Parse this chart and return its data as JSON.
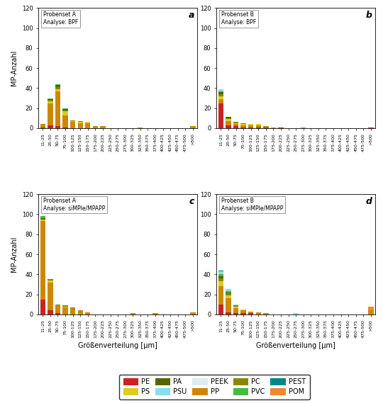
{
  "categories": [
    "11-25",
    "25-50",
    "50-75",
    "75-100",
    "100-125",
    "125-150",
    "150-175",
    "175-200",
    "200-225",
    "225-250",
    "250-275",
    "275-300",
    "300-325",
    "325-350",
    "350-375",
    "375-400",
    "400-425",
    "425-450",
    "450-475",
    "475-500",
    ">500"
  ],
  "colors": {
    "PE": "#cc2222",
    "PP": "#cc8800",
    "PS": "#ddcc22",
    "PC": "#888800",
    "PA": "#556600",
    "PVC": "#44bb44",
    "PSU": "#88ddee",
    "PEST": "#008888",
    "PEEK": "#ddeeee",
    "POM": "#ee8833"
  },
  "panel_a": {
    "title": "Probenset A",
    "subtitle": "Analyse: BPF",
    "label": "a",
    "data": {
      "PE": [
        1,
        3,
        2,
        1,
        0,
        0,
        0,
        0,
        0,
        0,
        0,
        0,
        0,
        0,
        0,
        0,
        0,
        0,
        0,
        0,
        0
      ],
      "PP": [
        3,
        22,
        35,
        12,
        6,
        5,
        5,
        2,
        2,
        0,
        0,
        0,
        0,
        1,
        0,
        0,
        0,
        0,
        0,
        0,
        2
      ],
      "PS": [
        0,
        2,
        2,
        4,
        1,
        1,
        1,
        0,
        0,
        0,
        0,
        0,
        0,
        0,
        0,
        0,
        0,
        0,
        0,
        0,
        0
      ],
      "PC": [
        0,
        1,
        2,
        1,
        1,
        1,
        0,
        0,
        0,
        0,
        0,
        0,
        0,
        0,
        0,
        0,
        0,
        0,
        0,
        0,
        0
      ],
      "PA": [
        0,
        1,
        2,
        1,
        0,
        0,
        0,
        0,
        0,
        0,
        0,
        0,
        0,
        0,
        0,
        0,
        0,
        0,
        0,
        0,
        0
      ],
      "PVC": [
        0,
        1,
        1,
        1,
        0,
        0,
        0,
        0,
        0,
        0,
        0,
        0,
        0,
        0,
        0,
        0,
        0,
        0,
        0,
        0,
        0
      ],
      "PSU": [
        0,
        0,
        0,
        0,
        0,
        0,
        0,
        0,
        0,
        0,
        0,
        0,
        0,
        0,
        0,
        0,
        0,
        0,
        0,
        0,
        0
      ],
      "PEST": [
        0,
        0,
        0,
        0,
        0,
        0,
        0,
        0,
        0,
        0,
        0,
        0,
        0,
        0,
        0,
        0,
        0,
        0,
        0,
        0,
        0
      ],
      "PEEK": [
        0,
        0,
        0,
        0,
        0,
        0,
        0,
        0,
        0,
        0,
        0,
        0,
        0,
        0,
        0,
        0,
        0,
        0,
        0,
        0,
        0
      ],
      "POM": [
        0,
        0,
        0,
        0,
        0,
        0,
        0,
        0,
        0,
        0,
        0,
        0,
        0,
        0,
        0,
        0,
        0,
        0,
        0,
        0,
        0
      ]
    }
  },
  "panel_b": {
    "title": "Probenset B",
    "subtitle": "Analyse: BPF",
    "label": "b",
    "data": {
      "PE": [
        25,
        3,
        2,
        1,
        1,
        1,
        1,
        0,
        1,
        0,
        0,
        0,
        0,
        0,
        0,
        0,
        0,
        0,
        0,
        0,
        1
      ],
      "PP": [
        4,
        4,
        2,
        2,
        2,
        2,
        1,
        1,
        0,
        0,
        0,
        1,
        0,
        0,
        0,
        0,
        0,
        0,
        0,
        0,
        0
      ],
      "PS": [
        3,
        2,
        1,
        1,
        1,
        1,
        0,
        0,
        0,
        0,
        0,
        0,
        0,
        0,
        0,
        0,
        0,
        0,
        0,
        0,
        0
      ],
      "PC": [
        2,
        1,
        1,
        1,
        0,
        0,
        0,
        0,
        0,
        0,
        0,
        0,
        0,
        0,
        0,
        0,
        0,
        0,
        0,
        0,
        0
      ],
      "PA": [
        2,
        1,
        0,
        0,
        0,
        0,
        0,
        0,
        0,
        0,
        0,
        0,
        0,
        0,
        0,
        0,
        0,
        0,
        0,
        0,
        0
      ],
      "PVC": [
        1,
        0,
        0,
        0,
        0,
        0,
        0,
        0,
        0,
        0,
        0,
        0,
        0,
        0,
        0,
        0,
        0,
        0,
        0,
        0,
        0
      ],
      "PSU": [
        2,
        0,
        0,
        0,
        0,
        0,
        0,
        0,
        0,
        0,
        0,
        0,
        0,
        0,
        0,
        0,
        0,
        0,
        0,
        0,
        0
      ],
      "PEST": [
        0,
        0,
        0,
        0,
        0,
        0,
        0,
        0,
        0,
        0,
        0,
        0,
        0,
        0,
        0,
        0,
        0,
        0,
        0,
        0,
        0
      ],
      "PEEK": [
        0,
        0,
        0,
        0,
        0,
        0,
        0,
        0,
        0,
        0,
        0,
        0,
        0,
        0,
        0,
        0,
        0,
        0,
        0,
        0,
        0
      ],
      "POM": [
        0,
        0,
        0,
        0,
        0,
        0,
        0,
        0,
        0,
        0,
        0,
        0,
        0,
        0,
        0,
        0,
        0,
        0,
        0,
        0,
        0
      ]
    }
  },
  "panel_c": {
    "title": "Probenset A",
    "subtitle": "Analyse: siMPle/MPAPP",
    "label": "c",
    "data": {
      "PE": [
        15,
        4,
        1,
        0,
        0,
        0,
        0,
        0,
        0,
        0,
        0,
        0,
        0,
        0,
        0,
        0,
        0,
        0,
        0,
        0,
        0
      ],
      "PP": [
        78,
        28,
        8,
        7,
        6,
        4,
        2,
        0,
        0,
        0,
        0,
        0,
        1,
        0,
        0,
        1,
        0,
        0,
        0,
        0,
        2
      ],
      "PS": [
        2,
        2,
        0,
        1,
        0,
        0,
        0,
        0,
        0,
        0,
        0,
        0,
        0,
        0,
        0,
        0,
        0,
        0,
        0,
        0,
        0
      ],
      "PC": [
        0,
        1,
        1,
        1,
        1,
        0,
        0,
        0,
        0,
        0,
        0,
        0,
        0,
        0,
        0,
        0,
        0,
        0,
        0,
        0,
        0
      ],
      "PA": [
        1,
        0,
        0,
        0,
        0,
        0,
        0,
        0,
        0,
        0,
        0,
        0,
        0,
        0,
        0,
        0,
        0,
        0,
        0,
        0,
        0
      ],
      "PVC": [
        2,
        0,
        0,
        0,
        0,
        0,
        0,
        0,
        0,
        0,
        0,
        0,
        0,
        0,
        0,
        0,
        0,
        0,
        0,
        0,
        0
      ],
      "PSU": [
        0,
        0,
        0,
        0,
        0,
        0,
        0,
        0,
        0,
        0,
        0,
        0,
        0,
        0,
        0,
        0,
        0,
        0,
        0,
        0,
        0
      ],
      "PEST": [
        0,
        0,
        0,
        0,
        0,
        0,
        0,
        0,
        0,
        0,
        0,
        0,
        0,
        0,
        0,
        0,
        0,
        0,
        0,
        0,
        0
      ],
      "PEEK": [
        0,
        0,
        0,
        0,
        0,
        0,
        0,
        0,
        0,
        0,
        0,
        0,
        0,
        0,
        0,
        0,
        0,
        0,
        0,
        0,
        0
      ],
      "POM": [
        0,
        0,
        0,
        0,
        0,
        0,
        0,
        0,
        0,
        0,
        0,
        0,
        0,
        0,
        0,
        0,
        0,
        0,
        0,
        0,
        0
      ]
    }
  },
  "panel_d": {
    "title": "Probenset B",
    "subtitle": "Analyse: siMPle/MPAPP",
    "label": "d",
    "data": {
      "PE": [
        10,
        2,
        1,
        1,
        1,
        0,
        0,
        0,
        0,
        0,
        0,
        0,
        0,
        0,
        0,
        0,
        0,
        0,
        0,
        0,
        0
      ],
      "PP": [
        18,
        14,
        5,
        3,
        2,
        2,
        1,
        0,
        0,
        0,
        0,
        0,
        0,
        0,
        0,
        0,
        0,
        0,
        0,
        0,
        4
      ],
      "PS": [
        5,
        3,
        2,
        1,
        0,
        0,
        0,
        0,
        0,
        0,
        0,
        0,
        0,
        0,
        0,
        0,
        0,
        0,
        0,
        0,
        0
      ],
      "PC": [
        3,
        2,
        1,
        0,
        0,
        0,
        0,
        0,
        0,
        0,
        0,
        0,
        0,
        0,
        0,
        0,
        0,
        0,
        0,
        0,
        0
      ],
      "PA": [
        2,
        1,
        0,
        0,
        0,
        0,
        0,
        0,
        0,
        0,
        0,
        0,
        0,
        0,
        0,
        0,
        0,
        0,
        0,
        0,
        0
      ],
      "PVC": [
        2,
        1,
        0,
        0,
        0,
        0,
        0,
        0,
        0,
        0,
        0,
        0,
        0,
        0,
        0,
        0,
        0,
        0,
        0,
        0,
        0
      ],
      "PSU": [
        3,
        2,
        1,
        0,
        0,
        0,
        0,
        0,
        0,
        0,
        1,
        0,
        0,
        0,
        0,
        0,
        0,
        0,
        0,
        0,
        0
      ],
      "PEST": [
        1,
        0,
        0,
        0,
        0,
        0,
        0,
        0,
        0,
        0,
        0,
        0,
        0,
        0,
        0,
        0,
        0,
        0,
        0,
        0,
        0
      ],
      "PEEK": [
        0,
        0,
        0,
        0,
        0,
        0,
        0,
        0,
        0,
        0,
        0,
        0,
        0,
        0,
        0,
        0,
        0,
        0,
        0,
        0,
        0
      ],
      "POM": [
        0,
        0,
        0,
        0,
        0,
        0,
        0,
        0,
        0,
        0,
        0,
        0,
        0,
        0,
        0,
        0,
        0,
        0,
        0,
        0,
        4
      ]
    }
  },
  "ylabel": "MP-Anzahl",
  "xlabel": "Größenverteilung [µm]",
  "ylim": [
    0,
    120
  ],
  "yticks": [
    0,
    20,
    40,
    60,
    80,
    100,
    120
  ],
  "material_order": [
    "PE",
    "PP",
    "PS",
    "PC",
    "PA",
    "PVC",
    "PSU",
    "PEST",
    "PEEK",
    "POM"
  ],
  "legend_row1": [
    "PE",
    "PS",
    "PA",
    "PSU",
    "PEEK"
  ],
  "legend_row2": [
    "PP",
    "PC",
    "PVC",
    "PEST",
    "POM"
  ],
  "background_color": "#ffffff"
}
